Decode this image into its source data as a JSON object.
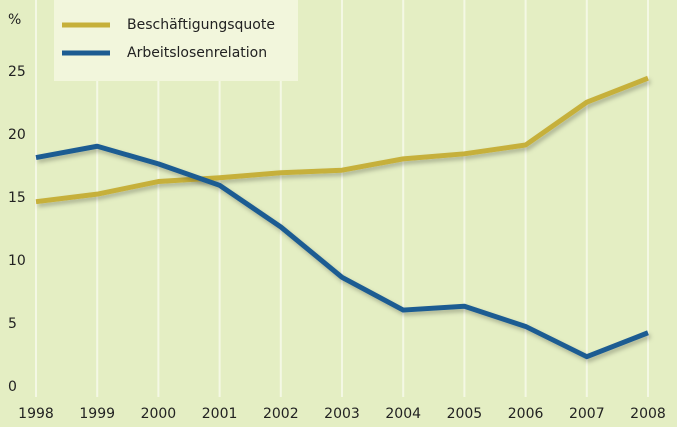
{
  "chart_data": {
    "type": "line",
    "y_unit": "%",
    "x": [
      1998,
      1999,
      2000,
      2001,
      2002,
      2003,
      2004,
      2005,
      2006,
      2007,
      2008
    ],
    "xlim": [
      1998,
      2008
    ],
    "xticks": [
      1998,
      1999,
      2000,
      2001,
      2002,
      2003,
      2004,
      2005,
      2006,
      2007,
      2008
    ],
    "ylim": [
      0,
      30
    ],
    "yticks": [
      0,
      5,
      10,
      15,
      20,
      25
    ],
    "grid": true,
    "legend": "top-left",
    "series": [
      {
        "name": "Beschäftigungsquote",
        "color": "#c6b03a",
        "values": [
          15.5,
          16.1,
          17.1,
          17.4,
          17.8,
          18.0,
          18.9,
          19.3,
          20.0,
          23.4,
          25.3
        ]
      },
      {
        "name": "Arbeitslosenrelation",
        "color": "#1d5c92",
        "values": [
          19.0,
          19.9,
          18.5,
          16.8,
          13.5,
          9.5,
          6.9,
          7.2,
          5.6,
          3.2,
          5.1
        ]
      }
    ]
  }
}
